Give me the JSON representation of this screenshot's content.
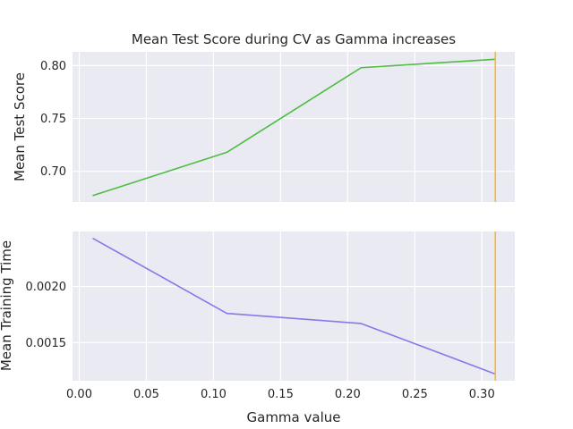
{
  "chart_data": [
    {
      "type": "line",
      "title": "Mean Test Score during CV as Gamma increases",
      "xlabel": "",
      "ylabel": "Mean Test Score",
      "x": [
        0.01,
        0.11,
        0.21,
        0.31
      ],
      "series": [
        {
          "values": [
            0.677,
            0.718,
            0.798,
            0.806
          ],
          "color": "#4cbd3e"
        }
      ],
      "xlim": [
        -0.005,
        0.3245
      ],
      "ylim": [
        0.671,
        0.813
      ],
      "yticks": [
        "0.70",
        "0.75",
        "0.80"
      ],
      "ytick_values": [
        0.7,
        0.75,
        0.8
      ],
      "vline": {
        "x": 0.31,
        "color": "#fbb829"
      },
      "grid": true,
      "background": "#eaeaf2"
    },
    {
      "type": "line",
      "title": "",
      "xlabel": "Gamma value",
      "ylabel": "Mean Training Time",
      "x": [
        0.01,
        0.11,
        0.21,
        0.31
      ],
      "series": [
        {
          "values": [
            0.00243,
            0.00176,
            0.00167,
            0.00122
          ],
          "color": "#8878e8"
        }
      ],
      "xlim": [
        -0.005,
        0.3245
      ],
      "ylim": [
        0.00116,
        0.00249
      ],
      "xticks": [
        "0.00",
        "0.05",
        "0.10",
        "0.15",
        "0.20",
        "0.25",
        "0.30"
      ],
      "xtick_values": [
        0.0,
        0.05,
        0.1,
        0.15,
        0.2,
        0.25,
        0.3
      ],
      "yticks": [
        "0.0015",
        "0.0020"
      ],
      "ytick_values": [
        0.0015,
        0.002
      ],
      "vline": {
        "x": 0.31,
        "color": "#fbb829"
      },
      "grid": true,
      "background": "#eaeaf2"
    }
  ]
}
